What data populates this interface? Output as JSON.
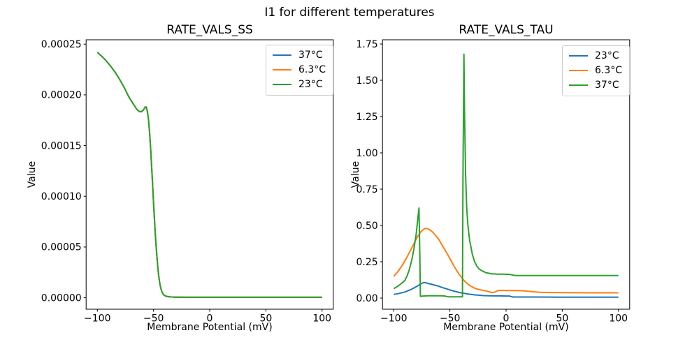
{
  "figure": {
    "title": "I1 for different temperatures"
  },
  "chart_data": [
    {
      "type": "line",
      "title": "RATE_VALS_SS",
      "xlabel": "Membrane Potential (mV)",
      "ylabel": "Value",
      "xlim": [
        -110,
        110
      ],
      "ylim": [
        -1.13e-05,
        0.0002543
      ],
      "xticks": [
        -100,
        -50,
        0,
        50,
        100
      ],
      "xtick_labels": [
        "−100",
        "−50",
        "0",
        "50",
        "100"
      ],
      "yticks": [
        0.0,
        5e-05,
        0.0001,
        0.00015,
        0.0002,
        0.00025
      ],
      "ytick_labels": [
        "0.00000",
        "0.00005",
        "0.00010",
        "0.00015",
        "0.00020",
        "0.00025"
      ],
      "grid": false,
      "legend_position": "upper right",
      "series": [
        {
          "name": "37°C",
          "color": "#1f77b4",
          "x": [
            -100,
            -96,
            -92,
            -88,
            -84,
            -80,
            -76,
            -72,
            -68,
            -65,
            -63,
            -61,
            -59,
            -57.5,
            -56.5,
            -55.5,
            -54.5,
            -53.5,
            -52.5,
            -51.5,
            -50.5,
            -49.5,
            -48.5,
            -47.5,
            -46.5,
            -45.5,
            -44.5,
            -43.5,
            -42.5,
            -41.5,
            -40.5,
            -39,
            -37,
            -35,
            -30,
            -20,
            -10,
            0,
            25,
            50,
            75,
            100
          ],
          "y": [
            0.000242,
            0.000238,
            0.0002335,
            0.000228,
            0.000222,
            0.000215,
            0.000207,
            0.000198,
            0.000191,
            0.000186,
            0.0001838,
            0.0001833,
            0.000185,
            0.000188,
            0.000188,
            0.000184,
            0.000176,
            0.000163,
            0.000146,
            0.000126,
            0.000105,
            8.45e-05,
            6.45e-05,
            4.75e-05,
            3.35e-05,
            2.25e-05,
            1.45e-05,
            9.2e-06,
            5.8e-06,
            3.7e-06,
            2.5e-06,
            1.6e-06,
            1.1e-06,
            8e-07,
            6e-07,
            5e-07,
            5e-07,
            5e-07,
            5e-07,
            5e-07,
            5e-07,
            5e-07
          ]
        },
        {
          "name": "6.3°C",
          "color": "#ff7f0e",
          "x": [
            -100,
            -96,
            -92,
            -88,
            -84,
            -80,
            -76,
            -72,
            -68,
            -65,
            -63,
            -61,
            -59,
            -57.5,
            -56.5,
            -55.5,
            -54.5,
            -53.5,
            -52.5,
            -51.5,
            -50.5,
            -49.5,
            -48.5,
            -47.5,
            -46.5,
            -45.5,
            -44.5,
            -43.5,
            -42.5,
            -41.5,
            -40.5,
            -39,
            -37,
            -35,
            -30,
            -20,
            -10,
            0,
            25,
            50,
            75,
            100
          ],
          "y": [
            0.000242,
            0.000238,
            0.0002335,
            0.000228,
            0.000222,
            0.000215,
            0.000207,
            0.000198,
            0.000191,
            0.000186,
            0.0001838,
            0.0001833,
            0.000185,
            0.000188,
            0.000188,
            0.000184,
            0.000176,
            0.000163,
            0.000146,
            0.000126,
            0.000105,
            8.45e-05,
            6.45e-05,
            4.75e-05,
            3.35e-05,
            2.25e-05,
            1.45e-05,
            9.2e-06,
            5.8e-06,
            3.7e-06,
            2.5e-06,
            1.6e-06,
            1.1e-06,
            8e-07,
            6e-07,
            5e-07,
            5e-07,
            5e-07,
            5e-07,
            5e-07,
            5e-07,
            5e-07
          ]
        },
        {
          "name": "23°C",
          "color": "#2ca02c",
          "x": [
            -100,
            -96,
            -92,
            -88,
            -84,
            -80,
            -76,
            -72,
            -68,
            -65,
            -63,
            -61,
            -59,
            -57.5,
            -56.5,
            -55.5,
            -54.5,
            -53.5,
            -52.5,
            -51.5,
            -50.5,
            -49.5,
            -48.5,
            -47.5,
            -46.5,
            -45.5,
            -44.5,
            -43.5,
            -42.5,
            -41.5,
            -40.5,
            -39,
            -37,
            -35,
            -30,
            -20,
            -10,
            0,
            25,
            50,
            75,
            100
          ],
          "y": [
            0.000242,
            0.000238,
            0.0002335,
            0.000228,
            0.000222,
            0.000215,
            0.000207,
            0.000198,
            0.000191,
            0.000186,
            0.0001838,
            0.0001833,
            0.000185,
            0.000188,
            0.000188,
            0.000184,
            0.000176,
            0.000163,
            0.000146,
            0.000126,
            0.000105,
            8.45e-05,
            6.45e-05,
            4.75e-05,
            3.35e-05,
            2.25e-05,
            1.45e-05,
            9.2e-06,
            5.8e-06,
            3.7e-06,
            2.5e-06,
            1.6e-06,
            1.1e-06,
            8e-07,
            6e-07,
            5e-07,
            5e-07,
            5e-07,
            5e-07,
            5e-07,
            5e-07,
            5e-07
          ]
        }
      ]
    },
    {
      "type": "line",
      "title": "RATE_VALS_TAU",
      "xlabel": "Membrane Potential (mV)",
      "ylabel": "Value",
      "xlim": [
        -110,
        110
      ],
      "ylim": [
        -0.077,
        1.779
      ],
      "xticks": [
        -100,
        -50,
        0,
        50,
        100
      ],
      "xtick_labels": [
        "−100",
        "−50",
        "0",
        "50",
        "100"
      ],
      "yticks": [
        0.0,
        0.25,
        0.5,
        0.75,
        1.0,
        1.25,
        1.5,
        1.75
      ],
      "ytick_labels": [
        "0.00",
        "0.25",
        "0.50",
        "0.75",
        "1.00",
        "1.25",
        "1.50",
        "1.75"
      ],
      "grid": false,
      "legend_position": "upper right",
      "series": [
        {
          "name": "23°C",
          "color": "#1f77b4",
          "x": [
            -100,
            -95,
            -90,
            -85,
            -80,
            -77,
            -75,
            -73,
            -71,
            -68,
            -65,
            -62,
            -60,
            -57,
            -55,
            -52,
            -50,
            -48,
            -45,
            -42,
            -40,
            -37,
            -35,
            -32,
            -30,
            -27,
            -25,
            -22,
            -20,
            -15,
            -10,
            -5,
            0,
            3,
            4.5,
            6,
            10,
            20,
            50,
            100
          ],
          "y": [
            0.025,
            0.032,
            0.042,
            0.057,
            0.078,
            0.092,
            0.102,
            0.107,
            0.104,
            0.098,
            0.092,
            0.086,
            0.081,
            0.073,
            0.068,
            0.061,
            0.056,
            0.051,
            0.045,
            0.039,
            0.036,
            0.032,
            0.029,
            0.026,
            0.024,
            0.021,
            0.02,
            0.018,
            0.017,
            0.016,
            0.015,
            0.015,
            0.014,
            0.014,
            0.01,
            0.007,
            0.007,
            0.007,
            0.006,
            0.006
          ]
        },
        {
          "name": "6.3°C",
          "color": "#ff7f0e",
          "x": [
            -100,
            -96,
            -92,
            -88,
            -85,
            -82,
            -79,
            -76,
            -74,
            -72,
            -70,
            -68,
            -65,
            -62,
            -60,
            -57,
            -54,
            -52,
            -50,
            -48,
            -46,
            -44,
            -42,
            -40,
            -38,
            -36,
            -34,
            -32,
            -30,
            -28,
            -25,
            -22,
            -20,
            -17,
            -15,
            -13,
            -11,
            -9,
            -7,
            -4,
            0,
            5,
            10,
            15,
            20,
            26,
            30,
            40,
            50,
            75,
            100
          ],
          "y": [
            0.15,
            0.185,
            0.23,
            0.285,
            0.33,
            0.375,
            0.42,
            0.455,
            0.47,
            0.48,
            0.478,
            0.47,
            0.452,
            0.425,
            0.405,
            0.365,
            0.327,
            0.3,
            0.272,
            0.243,
            0.215,
            0.19,
            0.166,
            0.145,
            0.126,
            0.11,
            0.096,
            0.085,
            0.076,
            0.068,
            0.06,
            0.055,
            0.052,
            0.047,
            0.043,
            0.038,
            0.038,
            0.044,
            0.052,
            0.053,
            0.052,
            0.052,
            0.052,
            0.05,
            0.046,
            0.042,
            0.04,
            0.038,
            0.037,
            0.036,
            0.036
          ]
        },
        {
          "name": "37°C",
          "color": "#2ca02c",
          "x": [
            -100,
            -97,
            -94,
            -91,
            -90,
            -88,
            -86,
            -84,
            -82,
            -80,
            -78.5,
            -77.5,
            -76.8,
            -76.3,
            -74,
            -70,
            -65,
            -60,
            -56,
            -54,
            -52.5,
            -50,
            -45,
            -41,
            -38.8,
            -38.4,
            -37.5,
            -37,
            -36,
            -35,
            -34,
            -32.5,
            -31,
            -30,
            -28,
            -26,
            -24,
            -21,
            -18,
            -15,
            -13,
            -8,
            -2,
            3,
            5,
            7,
            10,
            30,
            60,
            100
          ],
          "y": [
            0.065,
            0.078,
            0.095,
            0.115,
            0.122,
            0.155,
            0.2,
            0.26,
            0.34,
            0.44,
            0.55,
            0.62,
            0.3,
            0.012,
            0.014,
            0.016,
            0.016,
            0.016,
            0.015,
            0.013,
            0.009,
            0.008,
            0.008,
            0.008,
            0.008,
            0.8,
            1.68,
            1.3,
            0.85,
            0.62,
            0.5,
            0.4,
            0.34,
            0.3,
            0.25,
            0.22,
            0.2,
            0.186,
            0.175,
            0.17,
            0.167,
            0.165,
            0.165,
            0.163,
            0.16,
            0.156,
            0.155,
            0.155,
            0.155,
            0.155
          ]
        }
      ]
    }
  ]
}
